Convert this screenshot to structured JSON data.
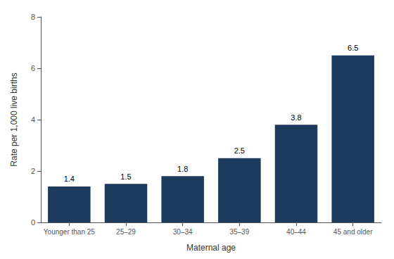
{
  "chart_data": {
    "type": "bar",
    "categories": [
      "Younger than 25",
      "25–29",
      "30–34",
      "35–39",
      "40–44",
      "45 and older"
    ],
    "values": [
      1.4,
      1.5,
      1.8,
      2.5,
      3.8,
      6.5
    ],
    "color": "#1b3a5c",
    "xlabel": "Maternal age",
    "ylabel": "Rate per 1,000 live births",
    "ylim": [
      0,
      8
    ],
    "yticks": [
      0,
      2,
      4,
      6,
      8
    ],
    "grid": false,
    "data_labels": true
  }
}
